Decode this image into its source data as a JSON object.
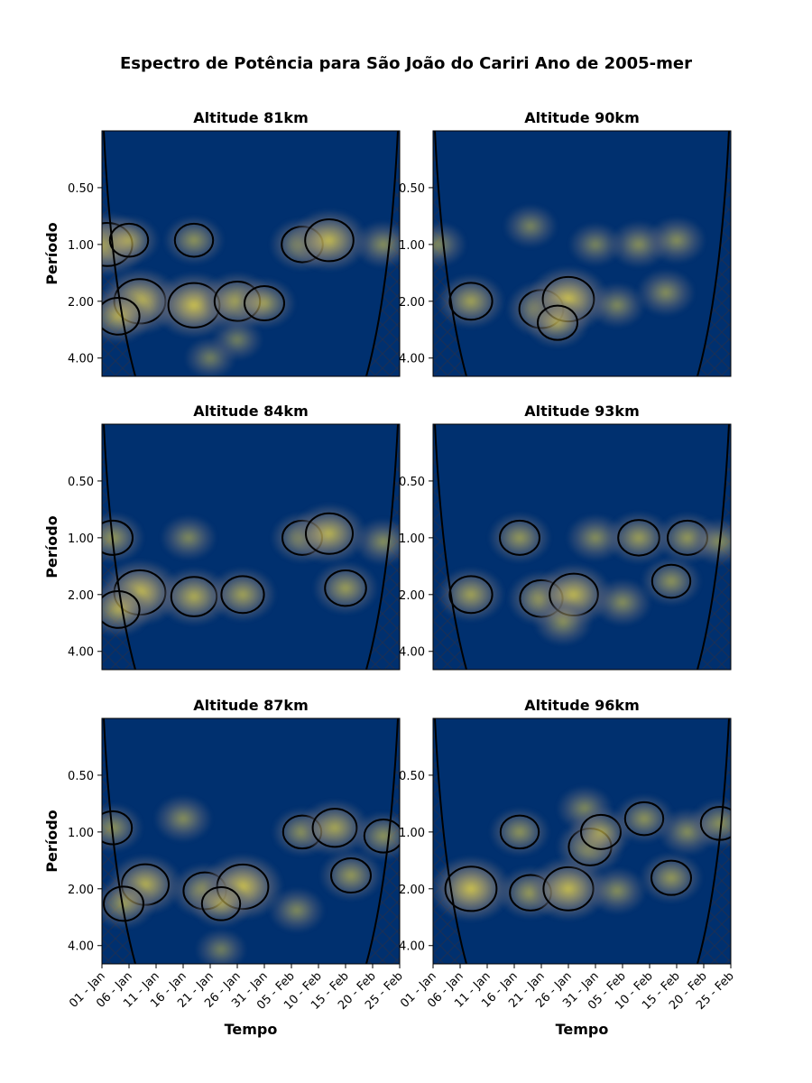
{
  "chart_data": {
    "type": "heatmap",
    "title": "Espectro de Potência para São João do Cariri Ano de 2005-mer",
    "xlabel": "Tempo",
    "ylabel": "Período",
    "x_tick_labels": [
      "01 - Jan",
      "06 - Jan",
      "11 - Jan",
      "16 - Jan",
      "21 - Jan",
      "26 - Jan",
      "31 - Jan",
      "05 - Feb",
      "10 - Feb",
      "15 - Feb",
      "20 - Feb",
      "25 - Feb"
    ],
    "x_days": [
      0,
      5,
      10,
      15,
      20,
      25,
      30,
      35,
      40,
      45,
      50,
      55
    ],
    "x_range_days": [
      0,
      55
    ],
    "y_scale": "log2",
    "y_ticks": [
      0.5,
      1,
      2,
      4
    ],
    "y_tick_labels": [
      "0.50",
      "1.00",
      "2.00",
      "4.00"
    ],
    "y_range": [
      0.25,
      5.0
    ],
    "y_inverted": true,
    "colormap": "cividis",
    "colors": {
      "background": "#00306f",
      "mid": "#5b6479",
      "high": "#f2dc47",
      "contour": "#000000"
    },
    "cone_of_influence": true,
    "layout": "3 rows x 2 columns",
    "panels": [
      {
        "title": "Altitude 81km",
        "blobs": [
          {
            "day": 1,
            "period": 1.0,
            "power": 0.85
          },
          {
            "day": 5,
            "period": 0.95,
            "power": 0.45
          },
          {
            "day": 7,
            "period": 2.0,
            "power": 0.9
          },
          {
            "day": 3,
            "period": 2.4,
            "power": 0.6
          },
          {
            "day": 17,
            "period": 2.1,
            "power": 0.9
          },
          {
            "day": 17,
            "period": 0.95,
            "power": 0.45
          },
          {
            "day": 25,
            "period": 2.0,
            "power": 0.7
          },
          {
            "day": 30,
            "period": 2.05,
            "power": 0.5
          },
          {
            "day": 37,
            "period": 1.0,
            "power": 0.55
          },
          {
            "day": 42,
            "period": 0.95,
            "power": 0.8
          },
          {
            "day": 52,
            "period": 1.0,
            "power": 0.4
          },
          {
            "day": 25,
            "period": 3.2,
            "power": 0.25
          },
          {
            "day": 20,
            "period": 4.0,
            "power": 0.25
          }
        ]
      },
      {
        "title": "Altitude 90km",
        "blobs": [
          {
            "day": 1,
            "period": 1.0,
            "power": 0.35
          },
          {
            "day": 7,
            "period": 2.0,
            "power": 0.6
          },
          {
            "day": 20,
            "period": 2.2,
            "power": 0.65
          },
          {
            "day": 25,
            "period": 1.95,
            "power": 0.9
          },
          {
            "day": 23,
            "period": 2.6,
            "power": 0.5
          },
          {
            "day": 34,
            "period": 2.1,
            "power": 0.35
          },
          {
            "day": 43,
            "period": 1.8,
            "power": 0.4
          },
          {
            "day": 38,
            "period": 1.0,
            "power": 0.4
          },
          {
            "day": 45,
            "period": 0.95,
            "power": 0.4
          },
          {
            "day": 30,
            "period": 1.0,
            "power": 0.3
          },
          {
            "day": 18,
            "period": 0.8,
            "power": 0.3
          }
        ]
      },
      {
        "title": "Altitude 84km",
        "blobs": [
          {
            "day": 2,
            "period": 1.0,
            "power": 0.5
          },
          {
            "day": 7,
            "period": 1.95,
            "power": 0.9
          },
          {
            "day": 3,
            "period": 2.4,
            "power": 0.6
          },
          {
            "day": 17,
            "period": 2.05,
            "power": 0.7
          },
          {
            "day": 16,
            "period": 1.0,
            "power": 0.35
          },
          {
            "day": 26,
            "period": 2.0,
            "power": 0.6
          },
          {
            "day": 37,
            "period": 1.0,
            "power": 0.5
          },
          {
            "day": 42,
            "period": 0.95,
            "power": 0.75
          },
          {
            "day": 45,
            "period": 1.85,
            "power": 0.55
          },
          {
            "day": 52,
            "period": 1.05,
            "power": 0.4
          }
        ]
      },
      {
        "title": "Altitude 93km",
        "blobs": [
          {
            "day": 7,
            "period": 2.0,
            "power": 0.6
          },
          {
            "day": 20,
            "period": 2.1,
            "power": 0.6
          },
          {
            "day": 26,
            "period": 2.0,
            "power": 0.8
          },
          {
            "day": 24,
            "period": 2.8,
            "power": 0.4
          },
          {
            "day": 35,
            "period": 2.2,
            "power": 0.4
          },
          {
            "day": 44,
            "period": 1.7,
            "power": 0.45
          },
          {
            "day": 16,
            "period": 1.0,
            "power": 0.5
          },
          {
            "day": 30,
            "period": 1.0,
            "power": 0.4
          },
          {
            "day": 38,
            "period": 1.0,
            "power": 0.55
          },
          {
            "day": 47,
            "period": 1.0,
            "power": 0.5
          },
          {
            "day": 53,
            "period": 1.05,
            "power": 0.4
          }
        ]
      },
      {
        "title": "Altitude 87km",
        "blobs": [
          {
            "day": 2,
            "period": 0.95,
            "power": 0.45
          },
          {
            "day": 8,
            "period": 1.9,
            "power": 0.75
          },
          {
            "day": 4,
            "period": 2.4,
            "power": 0.5
          },
          {
            "day": 19,
            "period": 2.05,
            "power": 0.6
          },
          {
            "day": 26,
            "period": 1.95,
            "power": 0.9
          },
          {
            "day": 22,
            "period": 2.4,
            "power": 0.45
          },
          {
            "day": 15,
            "period": 0.85,
            "power": 0.4
          },
          {
            "day": 37,
            "period": 1.0,
            "power": 0.45
          },
          {
            "day": 43,
            "period": 0.95,
            "power": 0.65
          },
          {
            "day": 46,
            "period": 1.7,
            "power": 0.5
          },
          {
            "day": 52,
            "period": 1.05,
            "power": 0.45
          },
          {
            "day": 36,
            "period": 2.6,
            "power": 0.35
          },
          {
            "day": 22,
            "period": 4.2,
            "power": 0.25
          }
        ]
      },
      {
        "title": "Altitude 96km",
        "blobs": [
          {
            "day": 7,
            "period": 2.0,
            "power": 0.9
          },
          {
            "day": 18,
            "period": 2.1,
            "power": 0.55
          },
          {
            "day": 25,
            "period": 2.0,
            "power": 0.85
          },
          {
            "day": 29,
            "period": 1.2,
            "power": 0.6
          },
          {
            "day": 34,
            "period": 2.05,
            "power": 0.4
          },
          {
            "day": 44,
            "period": 1.75,
            "power": 0.5
          },
          {
            "day": 16,
            "period": 1.0,
            "power": 0.45
          },
          {
            "day": 28,
            "period": 0.75,
            "power": 0.35
          },
          {
            "day": 31,
            "period": 1.0,
            "power": 0.5
          },
          {
            "day": 39,
            "period": 0.85,
            "power": 0.45
          },
          {
            "day": 47,
            "period": 1.0,
            "power": 0.4
          },
          {
            "day": 53,
            "period": 0.9,
            "power": 0.45
          }
        ]
      }
    ]
  }
}
